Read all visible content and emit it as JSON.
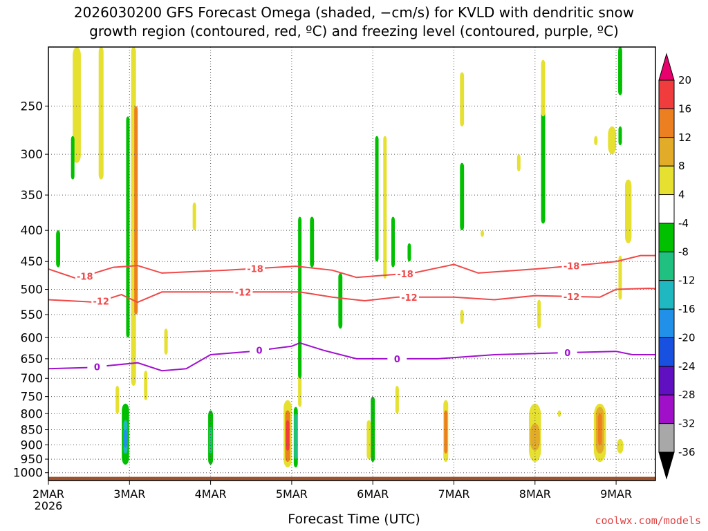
{
  "title_line1": "2026030200 GFS Forecast Omega (shaded, −cm/s) for KVLD with dendritic snow",
  "title_line2": "growth region (contoured, red, ºC) and freezing level (contoured, purple, ºC)",
  "credit": "coolwx.com/models",
  "chart_data": {
    "type": "heatmap",
    "title": "2026030200 GFS Forecast Omega (shaded, −cm/s) for KVLD with dendritic snow growth region (contoured, red, ºC) and freezing level (contoured, purple, ºC)",
    "xlabel": "Forecast Time (UTC)",
    "ylabel": "",
    "x_range_days": [
      0,
      7.65
    ],
    "x_ticks": [
      {
        "day": 0,
        "label": "2MAR",
        "sub": "2026"
      },
      {
        "day": 1,
        "label": "3MAR"
      },
      {
        "day": 2,
        "label": "4MAR"
      },
      {
        "day": 3,
        "label": "5MAR"
      },
      {
        "day": 4,
        "label": "6MAR"
      },
      {
        "day": 5,
        "label": "7MAR"
      },
      {
        "day": 6,
        "label": "8MAR"
      },
      {
        "day": 7,
        "label": "9MAR"
      }
    ],
    "y_levels": [
      250,
      300,
      350,
      400,
      450,
      500,
      550,
      600,
      650,
      700,
      750,
      800,
      850,
      900,
      950,
      1000
    ],
    "y_range_hPa": [
      200,
      1030
    ],
    "y_scale": "log-pressure",
    "ground_level_hPa": 1013,
    "colorbar": {
      "values": [
        20,
        16,
        12,
        8,
        4,
        -4,
        -8,
        -12,
        -16,
        -20,
        -24,
        -28,
        -32,
        -36
      ],
      "top_color": "#e8006c",
      "bottom_color": "#000000",
      "colors": [
        "#f03c3c",
        "#ec8020",
        "#e2ac28",
        "#e6e030",
        "#ffffff",
        "#00c000",
        "#20c080",
        "#20b8c0",
        "#2090e8",
        "#1850e0",
        "#6010c0",
        "#a010c8",
        "#a8a8a8"
      ]
    },
    "isotherms": [
      {
        "label": "-18",
        "color": "#f04848",
        "points": [
          [
            0,
            463
          ],
          [
            0.35,
            480
          ],
          [
            0.8,
            460
          ],
          [
            1.1,
            457
          ],
          [
            1.4,
            470
          ],
          [
            2.2,
            465
          ],
          [
            3.05,
            458
          ],
          [
            3.5,
            465
          ],
          [
            3.8,
            478
          ],
          [
            4.5,
            470
          ],
          [
            5.0,
            455
          ],
          [
            5.3,
            470
          ],
          [
            6.0,
            463
          ],
          [
            6.5,
            457
          ],
          [
            7.0,
            450
          ],
          [
            7.3,
            440
          ],
          [
            7.65,
            440
          ]
        ],
        "label_days": [
          0.45,
          2.55,
          4.4,
          6.45
        ]
      },
      {
        "label": "-12",
        "color": "#f04848",
        "points": [
          [
            0,
            520
          ],
          [
            0.6,
            525
          ],
          [
            0.9,
            510
          ],
          [
            1.1,
            525
          ],
          [
            1.4,
            505
          ],
          [
            2.5,
            505
          ],
          [
            3.1,
            505
          ],
          [
            3.5,
            515
          ],
          [
            3.9,
            522
          ],
          [
            4.3,
            515
          ],
          [
            5.0,
            515
          ],
          [
            5.5,
            520
          ],
          [
            6.0,
            512
          ],
          [
            6.8,
            515
          ],
          [
            7.0,
            500
          ],
          [
            7.4,
            498
          ],
          [
            7.65,
            500
          ]
        ],
        "label_days": [
          0.65,
          2.4,
          4.45,
          6.45
        ]
      },
      {
        "label": "0",
        "color": "#a010d0",
        "points": [
          [
            0,
            675
          ],
          [
            0.5,
            672
          ],
          [
            1.1,
            660
          ],
          [
            1.4,
            680
          ],
          [
            1.7,
            675
          ],
          [
            2.0,
            640
          ],
          [
            2.5,
            632
          ],
          [
            3.0,
            620
          ],
          [
            3.1,
            612
          ],
          [
            3.4,
            630
          ],
          [
            3.8,
            650
          ],
          [
            4.3,
            650
          ],
          [
            4.8,
            650
          ],
          [
            5.5,
            640
          ],
          [
            6.4,
            635
          ],
          [
            7.0,
            632
          ],
          [
            7.2,
            640
          ],
          [
            7.65,
            640
          ]
        ],
        "label_days": [
          0.6,
          2.6,
          4.3,
          6.4
        ]
      }
    ],
    "omega_regions": [
      {
        "day": 0.95,
        "p_top": 770,
        "p_bot": 970,
        "w": 0.09,
        "color": "#00c000"
      },
      {
        "day": 0.95,
        "p_top": 820,
        "p_bot": 930,
        "w": 0.05,
        "color": "#20b8c0"
      },
      {
        "day": 0.95,
        "p_top": 850,
        "p_bot": 910,
        "w": 0.03,
        "color": "#2090e8"
      },
      {
        "day": 2.0,
        "p_top": 790,
        "p_bot": 970,
        "w": 0.06,
        "color": "#00c000"
      },
      {
        "day": 2.0,
        "p_top": 840,
        "p_bot": 930,
        "w": 0.03,
        "color": "#20c080"
      },
      {
        "day": 2.95,
        "p_top": 760,
        "p_bot": 980,
        "w": 0.1,
        "color": "#e6e030"
      },
      {
        "day": 2.95,
        "p_top": 790,
        "p_bot": 960,
        "w": 0.06,
        "color": "#ec8020"
      },
      {
        "day": 2.95,
        "p_top": 820,
        "p_bot": 920,
        "w": 0.025,
        "color": "#f03c3c"
      },
      {
        "day": 3.05,
        "p_top": 780,
        "p_bot": 980,
        "w": 0.05,
        "color": "#00c000"
      },
      {
        "day": 3.05,
        "p_top": 800,
        "p_bot": 950,
        "w": 0.025,
        "color": "#20c080"
      },
      {
        "day": 3.1,
        "p_top": 600,
        "p_bot": 780,
        "w": 0.04,
        "color": "#e6e030"
      },
      {
        "day": 3.1,
        "p_top": 380,
        "p_bot": 700,
        "w": 0.03,
        "color": "#00c000"
      },
      {
        "day": 3.25,
        "p_top": 380,
        "p_bot": 460,
        "w": 0.05,
        "color": "#00c000"
      },
      {
        "day": 3.6,
        "p_top": 470,
        "p_bot": 580,
        "w": 0.05,
        "color": "#00c000"
      },
      {
        "day": 1.05,
        "p_top": 200,
        "p_bot": 720,
        "w": 0.06,
        "color": "#e6e030"
      },
      {
        "day": 1.08,
        "p_top": 250,
        "p_bot": 550,
        "w": 0.04,
        "color": "#ec8020"
      },
      {
        "day": 0.98,
        "p_top": 260,
        "p_bot": 600,
        "w": 0.03,
        "color": "#00c000"
      },
      {
        "day": 0.65,
        "p_top": 200,
        "p_bot": 330,
        "w": 0.06,
        "color": "#e6e030"
      },
      {
        "day": 0.35,
        "p_top": 200,
        "p_bot": 310,
        "w": 0.1,
        "color": "#e6e030"
      },
      {
        "day": 0.12,
        "p_top": 400,
        "p_bot": 460,
        "w": 0.05,
        "color": "#00c000"
      },
      {
        "day": 0.3,
        "p_top": 280,
        "p_bot": 330,
        "w": 0.03,
        "color": "#00c000"
      },
      {
        "day": 4.0,
        "p_top": 750,
        "p_bot": 960,
        "w": 0.05,
        "color": "#00c000"
      },
      {
        "day": 3.95,
        "p_top": 820,
        "p_bot": 950,
        "w": 0.05,
        "color": "#e6e030"
      },
      {
        "day": 4.05,
        "p_top": 280,
        "p_bot": 450,
        "w": 0.03,
        "color": "#00c000"
      },
      {
        "day": 4.15,
        "p_top": 280,
        "p_bot": 480,
        "w": 0.04,
        "color": "#e6e030"
      },
      {
        "day": 4.25,
        "p_top": 380,
        "p_bot": 460,
        "w": 0.03,
        "color": "#00c000"
      },
      {
        "day": 4.3,
        "p_top": 720,
        "p_bot": 800,
        "w": 0.04,
        "color": "#e6e030"
      },
      {
        "day": 4.9,
        "p_top": 760,
        "p_bot": 960,
        "w": 0.06,
        "color": "#e6e030"
      },
      {
        "day": 4.9,
        "p_top": 790,
        "p_bot": 930,
        "w": 0.035,
        "color": "#ec8020"
      },
      {
        "day": 5.1,
        "p_top": 310,
        "p_bot": 400,
        "w": 0.05,
        "color": "#00c000"
      },
      {
        "day": 5.1,
        "p_top": 220,
        "p_bot": 270,
        "w": 0.05,
        "color": "#e6e030"
      },
      {
        "day": 5.8,
        "p_top": 300,
        "p_bot": 320,
        "w": 0.04,
        "color": "#e6e030"
      },
      {
        "day": 6.0,
        "p_top": 770,
        "p_bot": 960,
        "w": 0.15,
        "color": "#e6e030"
      },
      {
        "day": 6.0,
        "p_top": 830,
        "p_bot": 920,
        "w": 0.12,
        "color": "#e2ac28"
      },
      {
        "day": 6.1,
        "p_top": 250,
        "p_bot": 390,
        "w": 0.05,
        "color": "#00c000"
      },
      {
        "day": 6.1,
        "p_top": 210,
        "p_bot": 260,
        "w": 0.05,
        "color": "#e6e030"
      },
      {
        "day": 6.05,
        "p_top": 520,
        "p_bot": 580,
        "w": 0.04,
        "color": "#e6e030"
      },
      {
        "day": 6.8,
        "p_top": 770,
        "p_bot": 960,
        "w": 0.15,
        "color": "#e6e030"
      },
      {
        "day": 6.8,
        "p_top": 780,
        "p_bot": 930,
        "w": 0.1,
        "color": "#e2ac28"
      },
      {
        "day": 6.8,
        "p_top": 800,
        "p_bot": 900,
        "w": 0.05,
        "color": "#ec8020"
      },
      {
        "day": 6.95,
        "p_top": 270,
        "p_bot": 300,
        "w": 0.1,
        "color": "#e6e030"
      },
      {
        "day": 6.75,
        "p_top": 280,
        "p_bot": 290,
        "w": 0.04,
        "color": "#e6e030"
      },
      {
        "day": 7.05,
        "p_top": 200,
        "p_bot": 240,
        "w": 0.05,
        "color": "#00c000"
      },
      {
        "day": 7.05,
        "p_top": 270,
        "p_bot": 290,
        "w": 0.04,
        "color": "#00c000"
      },
      {
        "day": 7.15,
        "p_top": 330,
        "p_bot": 420,
        "w": 0.08,
        "color": "#e6e030"
      },
      {
        "day": 7.05,
        "p_top": 440,
        "p_bot": 520,
        "w": 0.04,
        "color": "#e6e030"
      },
      {
        "day": 5.35,
        "p_top": 400,
        "p_bot": 410,
        "w": 0.02,
        "color": "#e6e030"
      },
      {
        "day": 1.8,
        "p_top": 360,
        "p_bot": 400,
        "w": 0.03,
        "color": "#e6e030"
      },
      {
        "day": 0.85,
        "p_top": 720,
        "p_bot": 800,
        "w": 0.03,
        "color": "#e6e030"
      },
      {
        "day": 4.45,
        "p_top": 420,
        "p_bot": 450,
        "w": 0.02,
        "color": "#00c000"
      },
      {
        "day": 5.1,
        "p_top": 540,
        "p_bot": 570,
        "w": 0.04,
        "color": "#e6e030"
      },
      {
        "day": 1.2,
        "p_top": 680,
        "p_bot": 760,
        "w": 0.04,
        "color": "#e6e030"
      },
      {
        "day": 1.45,
        "p_top": 580,
        "p_bot": 640,
        "w": 0.02,
        "color": "#e6e030"
      },
      {
        "day": 6.3,
        "p_top": 790,
        "p_bot": 810,
        "w": 0.04,
        "color": "#e6e030"
      },
      {
        "day": 7.05,
        "p_top": 880,
        "p_bot": 930,
        "w": 0.08,
        "color": "#e6e030"
      }
    ]
  }
}
